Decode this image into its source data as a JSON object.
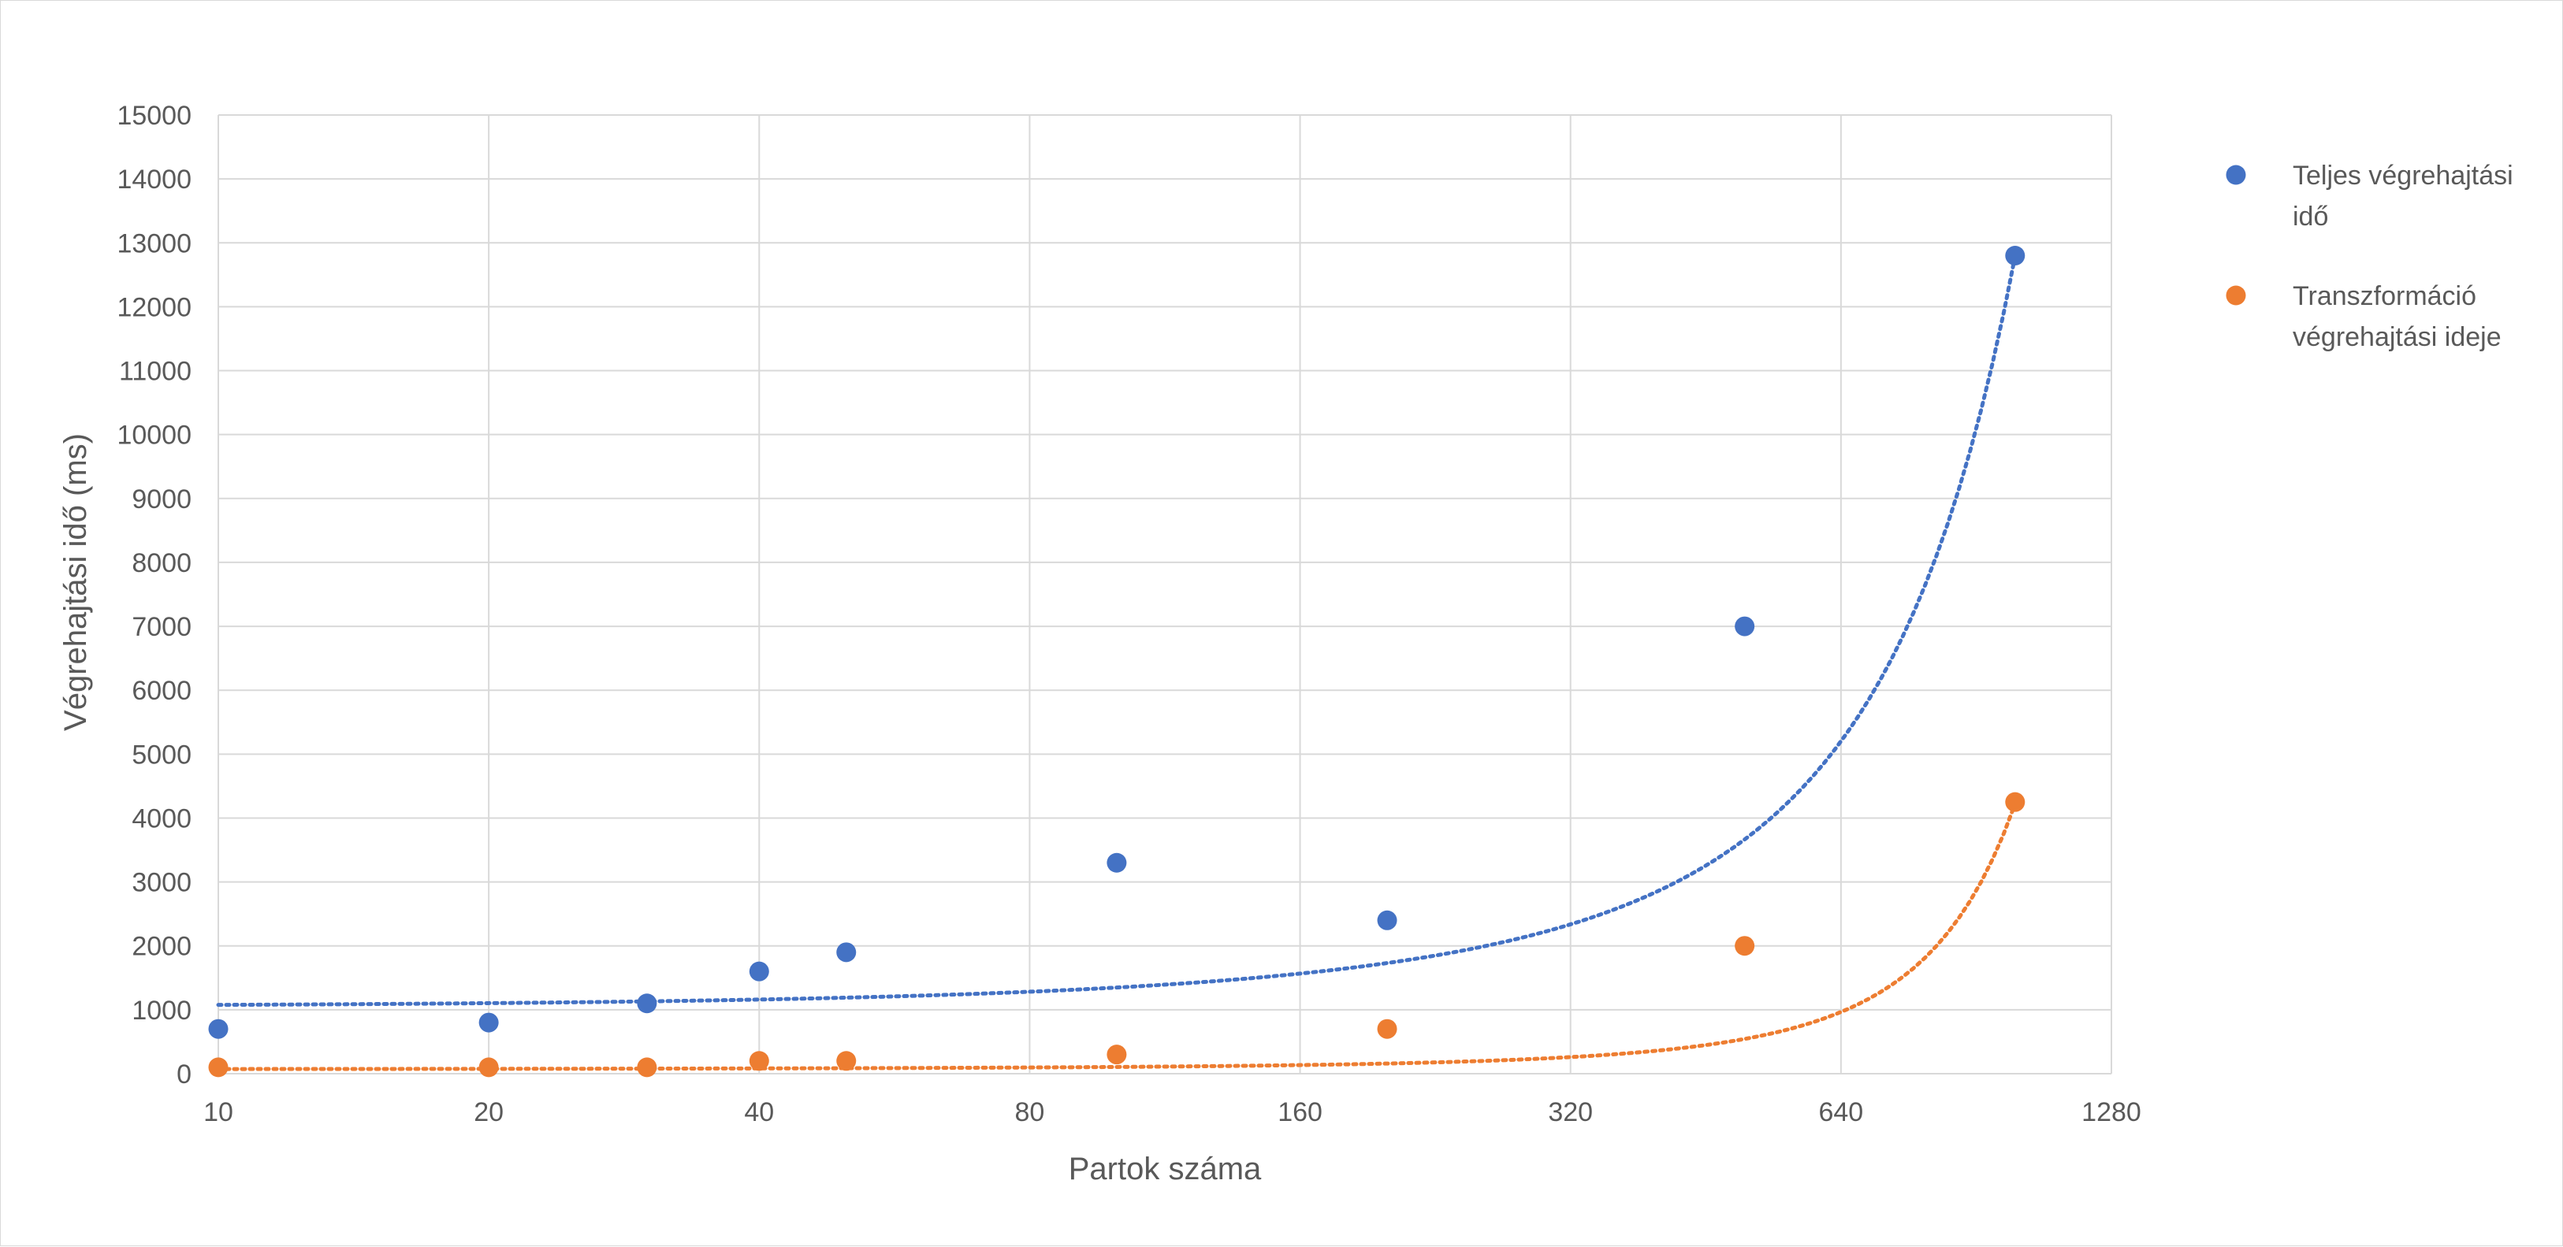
{
  "chart_data": {
    "type": "scatter",
    "xlabel": "Partok száma",
    "ylabel": "Végrehajtási idő (ms)",
    "x_scale": "log2",
    "xlim": [
      10,
      1280
    ],
    "ylim": [
      0,
      15000
    ],
    "x_ticks": [
      "10",
      "20",
      "40",
      "80",
      "160",
      "320",
      "640",
      "1280"
    ],
    "y_ticks": [
      "0",
      "1000",
      "2000",
      "3000",
      "4000",
      "5000",
      "6000",
      "7000",
      "8000",
      "9000",
      "10000",
      "11000",
      "12000",
      "13000",
      "14000",
      "15000"
    ],
    "grid": true,
    "legend_position": "right",
    "trendline": "dotted exponential",
    "series": [
      {
        "name_lines": [
          "Teljes végrehajtási",
          "idő"
        ],
        "color": "#4472C4",
        "points": [
          {
            "x": 10,
            "y": 700
          },
          {
            "x": 20,
            "y": 800
          },
          {
            "x": 30,
            "y": 1100
          },
          {
            "x": 40,
            "y": 1600
          },
          {
            "x": 50,
            "y": 1900
          },
          {
            "x": 100,
            "y": 3300
          },
          {
            "x": 200,
            "y": 2400
          },
          {
            "x": 500,
            "y": 7000
          },
          {
            "x": 1000,
            "y": 12800
          }
        ],
        "trend": {
          "a": 1050,
          "b": 0.0025
        }
      },
      {
        "name_lines": [
          "Transzformáció",
          "végrehajtási ideje"
        ],
        "color": "#ED7D31",
        "points": [
          {
            "x": 10,
            "y": 100
          },
          {
            "x": 20,
            "y": 100
          },
          {
            "x": 30,
            "y": 100
          },
          {
            "x": 40,
            "y": 200
          },
          {
            "x": 50,
            "y": 200
          },
          {
            "x": 100,
            "y": 300
          },
          {
            "x": 200,
            "y": 700
          },
          {
            "x": 500,
            "y": 2000
          },
          {
            "x": 1000,
            "y": 4250
          }
        ],
        "trend": {
          "a": 70,
          "b": 0.0041
        }
      }
    ]
  }
}
